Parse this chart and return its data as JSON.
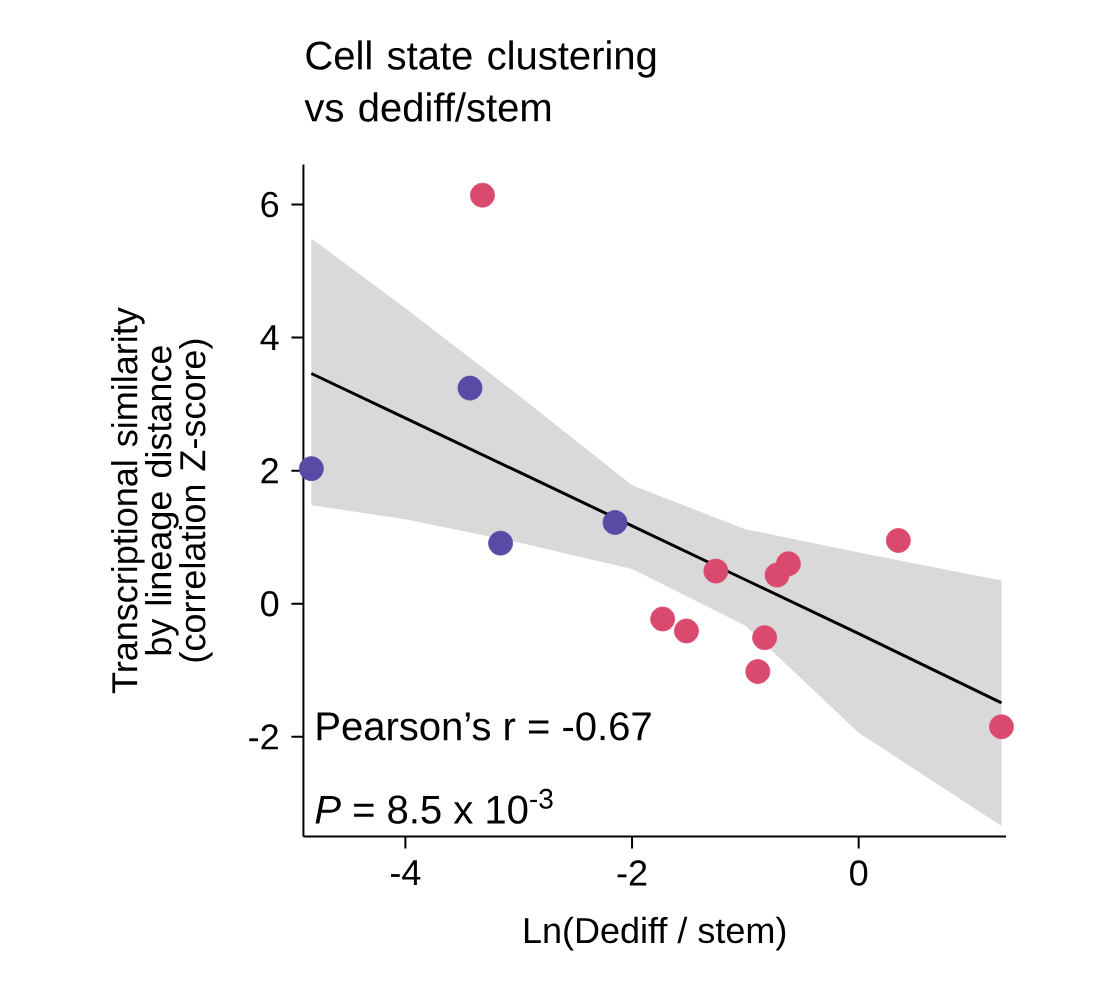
{
  "chart_data": {
    "type": "scatter",
    "title": "Cell state clustering vs dediff/stem",
    "xlabel": "Ln(Dediff / stem)",
    "ylabel": "Transcriptional similarity by lineage distance (correlation Z-score)",
    "xlim": [
      -4.9,
      1.3
    ],
    "ylim": [
      -3.5,
      6.6
    ],
    "xticks": [
      -4,
      -2,
      0
    ],
    "yticks": [
      -2,
      0,
      2,
      4,
      6
    ],
    "grid": false,
    "marker": "circle",
    "annotations": [
      "Pearson’s r = -0.67",
      "*P* =  8.5 x 10$^{-3}$"
    ],
    "series": [
      {
        "type": "line",
        "color": "#000000",
        "x": [
          -4.83,
          -4,
          -3,
          -2,
          -1,
          0,
          1.26
        ],
        "values": [
          3.46,
          2.79,
          1.98,
          1.17,
          0.36,
          -0.45,
          -1.49
        ],
        "lower": [
          1.48,
          1.27,
          0.92,
          0.52,
          -0.33,
          -1.94,
          -3.34
        ],
        "upper": [
          5.49,
          4.44,
          3.13,
          1.78,
          1.12,
          0.77,
          0.35
        ],
        "marker": "none"
      },
      {
        "type": "scatter",
        "color": "#d94a6e",
        "x": [
          -3.32,
          0.35,
          1.26,
          -1.26,
          -0.62,
          -0.72,
          -1.73,
          -1.52,
          -0.83,
          -0.89
        ],
        "values": [
          6.14,
          0.95,
          -1.85,
          0.49,
          0.6,
          0.43,
          -0.23,
          -0.41,
          -0.51,
          -1.02
        ]
      },
      {
        "type": "scatter",
        "color": "#5a4aa6",
        "x": [
          -3.43,
          -4.83,
          -3.16,
          -2.15
        ],
        "values": [
          3.24,
          2.03,
          0.91,
          1.22
        ]
      }
    ]
  }
}
